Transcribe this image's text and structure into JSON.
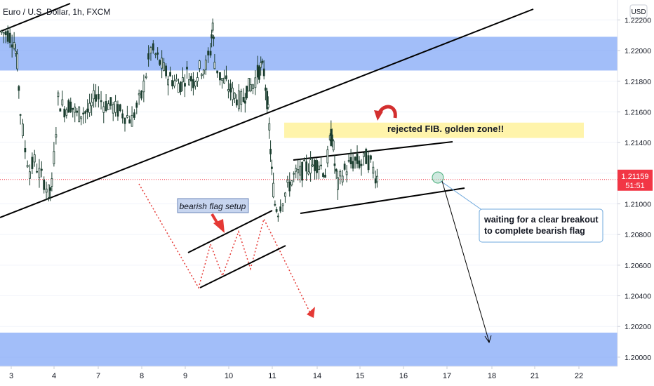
{
  "header": {
    "title": "Euro / U.S. Dollar, 1h, FXCM",
    "currency_button": "USD"
  },
  "chart_data": {
    "type": "candlestick",
    "xlabels": [
      "3",
      "4",
      "7",
      "8",
      "9",
      "10",
      "11",
      "14",
      "15",
      "16",
      "17",
      "18",
      "21",
      "22"
    ],
    "ylabels": [
      "1.22200",
      "1.22000",
      "1.21800",
      "1.21600",
      "1.21400",
      "1.21200",
      "1.21000",
      "1.20800",
      "1.20600",
      "1.20400",
      "1.20200",
      "1.20000"
    ],
    "yticks": [
      1.222,
      1.22,
      1.218,
      1.216,
      1.214,
      1.212,
      1.21,
      1.208,
      1.206,
      1.204,
      1.202,
      1.2
    ],
    "ylim": [
      1.1994,
      1.2233
    ],
    "xlim": [
      2.95,
      22.6
    ],
    "price_label": {
      "value": "1.21159",
      "countdown": "51:51",
      "price": 1.21159,
      "color": "#f23645"
    },
    "price_path": [
      [
        3.0,
        1.2212
      ],
      [
        3.2,
        1.2211
      ],
      [
        3.4,
        1.2206
      ],
      [
        3.5,
        1.2192
      ],
      [
        3.6,
        1.216
      ],
      [
        3.75,
        1.2135
      ],
      [
        3.9,
        1.2122
      ],
      [
        4.05,
        1.2128
      ],
      [
        4.2,
        1.212
      ],
      [
        4.35,
        1.2115
      ],
      [
        4.5,
        1.2107
      ],
      [
        4.6,
        1.2112
      ],
      [
        4.8,
        1.2168
      ],
      [
        5.0,
        1.2162
      ],
      [
        5.2,
        1.2165
      ],
      [
        5.4,
        1.2158
      ],
      [
        5.6,
        1.216
      ],
      [
        5.8,
        1.216
      ],
      [
        6.0,
        1.2172
      ],
      [
        6.25,
        1.2165
      ],
      [
        6.4,
        1.2165
      ],
      [
        7.0,
        1.2157
      ],
      [
        7.15,
        1.2155
      ],
      [
        7.3,
        1.2163
      ],
      [
        7.45,
        1.217
      ],
      [
        7.6,
        1.2185
      ],
      [
        7.75,
        1.2201
      ],
      [
        7.9,
        1.2197
      ],
      [
        8.1,
        1.219
      ],
      [
        8.3,
        1.2183
      ],
      [
        8.5,
        1.218
      ],
      [
        8.7,
        1.2178
      ],
      [
        8.9,
        1.2185
      ],
      [
        9.1,
        1.218
      ],
      [
        9.3,
        1.2188
      ],
      [
        9.5,
        1.219
      ],
      [
        9.65,
        1.22
      ],
      [
        9.72,
        1.2218
      ],
      [
        9.78,
        1.2193
      ],
      [
        9.95,
        1.2183
      ],
      [
        10.15,
        1.2178
      ],
      [
        10.35,
        1.2172
      ],
      [
        10.55,
        1.2168
      ],
      [
        10.7,
        1.2168
      ],
      [
        10.8,
        1.2175
      ],
      [
        11.0,
        1.2178
      ],
      [
        11.15,
        1.2185
      ],
      [
        11.25,
        1.2189
      ],
      [
        11.35,
        1.2186
      ],
      [
        11.45,
        1.2168
      ],
      [
        11.52,
        1.215
      ],
      [
        11.6,
        1.212
      ],
      [
        11.7,
        1.21
      ],
      [
        11.8,
        1.2096
      ],
      [
        11.95,
        1.2104
      ],
      [
        12.1,
        1.211
      ],
      [
        12.3,
        1.2118
      ],
      [
        12.5,
        1.212
      ],
      [
        12.7,
        1.2124
      ],
      [
        12.9,
        1.2125
      ],
      [
        13.1,
        1.2127
      ],
      [
        13.3,
        1.212
      ],
      [
        13.45,
        1.214
      ],
      [
        13.52,
        1.2146
      ],
      [
        13.6,
        1.2126
      ],
      [
        13.7,
        1.2112
      ],
      [
        13.85,
        1.212
      ],
      [
        14.05,
        1.2125
      ],
      [
        14.25,
        1.2128
      ],
      [
        14.45,
        1.2126
      ],
      [
        14.6,
        1.213
      ],
      [
        14.75,
        1.2126
      ],
      [
        14.9,
        1.2119
      ],
      [
        15.0,
        1.2116
      ]
    ]
  },
  "annotations": {
    "bearish_flag_label": "bearish flag setup",
    "golden_zone_label": "rejected FIB. golden zone!!",
    "callout_line1": "waiting for a clear breakout",
    "callout_line2": "to complete bearish flag"
  },
  "zones": [
    {
      "name": "resistance-zone",
      "y1": 1.2209,
      "y2": 1.2187,
      "color": "#7aa2f7"
    },
    {
      "name": "support-zone",
      "y1": 1.2016,
      "y2": 1.1994,
      "color": "#7aa2f7"
    },
    {
      "name": "golden-zone",
      "y1": 1.2153,
      "y2": 1.2143,
      "color": "#fff3a6"
    }
  ],
  "colors": {
    "candle": "#1a3d2e",
    "trendline": "#000000",
    "arrow_red": "#e53935",
    "grid": "#f0f3fa",
    "axis_text": "#131722"
  }
}
